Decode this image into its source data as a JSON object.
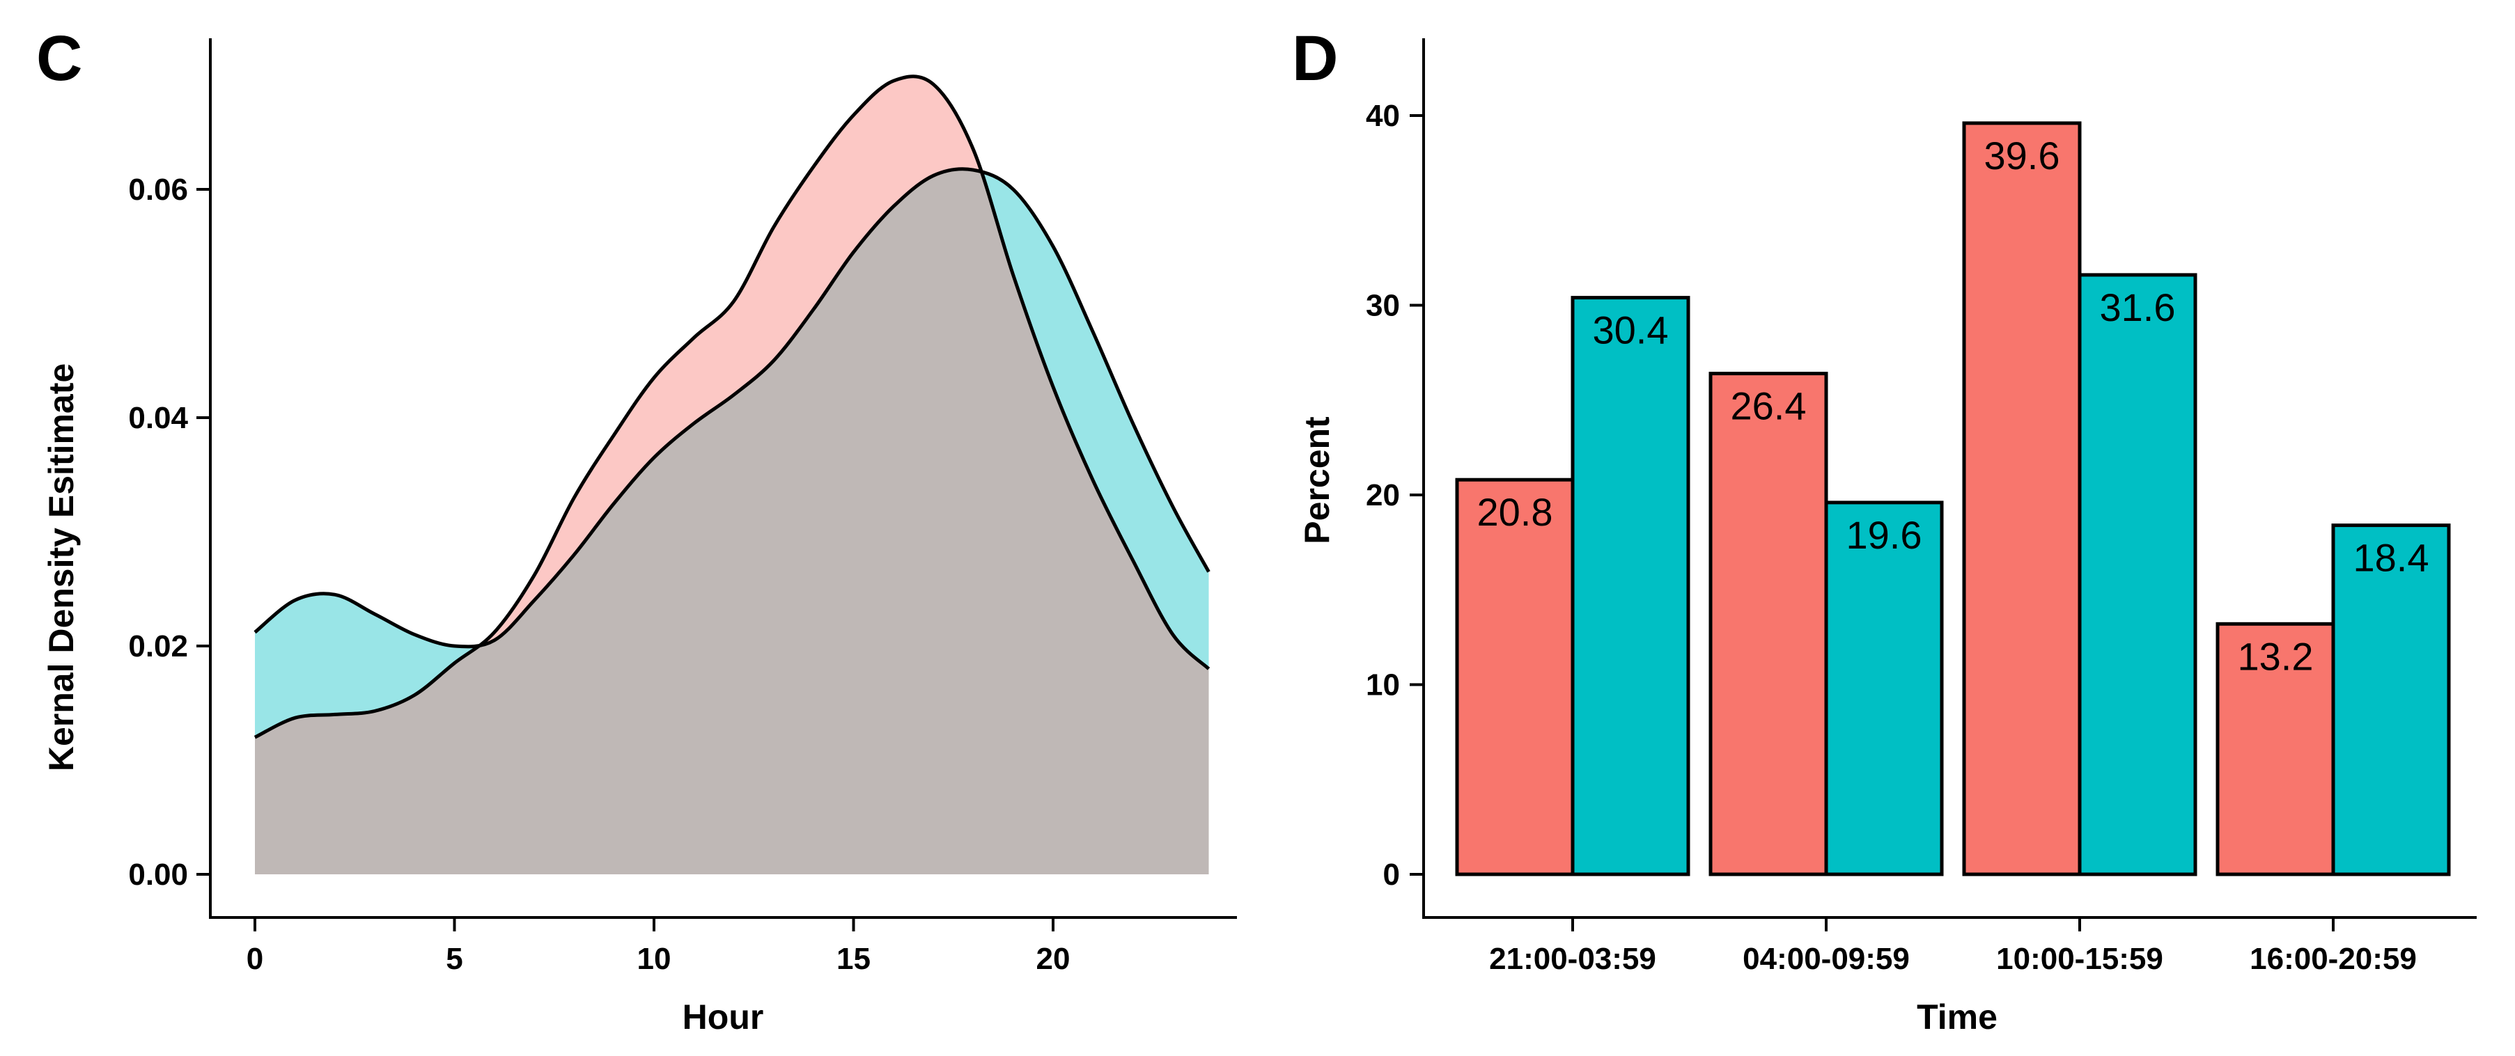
{
  "chart_data": [
    {
      "type": "area",
      "panel_label": "C",
      "xlabel": "Hour",
      "ylabel": "Kernal Density Esitimate",
      "xlim": [
        0,
        24
      ],
      "ylim": [
        0,
        0.07
      ],
      "xticks": [
        0,
        5,
        10,
        15,
        20
      ],
      "yticks": [
        0.0,
        0.02,
        0.04,
        0.06
      ],
      "ytick_labels": [
        "0.00",
        "0.02",
        "0.04",
        "0.06"
      ],
      "legend": "none",
      "grid": false,
      "series": [
        {
          "color": "#F8766D",
          "x": [
            0,
            1,
            2,
            3,
            4,
            5,
            6,
            7,
            8,
            9,
            10,
            11,
            12,
            13,
            14,
            15,
            16,
            17,
            18,
            19,
            20,
            21,
            22,
            23,
            23.9
          ],
          "y": [
            0.012,
            0.0137,
            0.014,
            0.0143,
            0.0157,
            0.0185,
            0.0212,
            0.0262,
            0.033,
            0.0385,
            0.0435,
            0.047,
            0.0502,
            0.0567,
            0.062,
            0.0665,
            0.0695,
            0.0692,
            0.0635,
            0.0525,
            0.0427,
            0.0345,
            0.0275,
            0.021,
            0.018
          ]
        },
        {
          "color": "#00BFC4",
          "x": [
            0,
            1,
            2,
            3,
            4,
            5,
            6,
            7,
            8,
            9,
            10,
            11,
            12,
            13,
            14,
            15,
            16,
            17,
            18,
            19,
            20,
            21,
            22,
            23,
            23.9
          ],
          "y": [
            0.0212,
            0.024,
            0.0245,
            0.0228,
            0.021,
            0.02,
            0.0205,
            0.024,
            0.028,
            0.0325,
            0.0365,
            0.0395,
            0.042,
            0.045,
            0.0495,
            0.0545,
            0.0585,
            0.0612,
            0.0617,
            0.06,
            0.055,
            0.0475,
            0.0395,
            0.0322,
            0.0265
          ]
        }
      ]
    },
    {
      "type": "bar",
      "panel_label": "D",
      "xlabel": "Time",
      "ylabel": "Percent",
      "ylim": [
        0,
        44
      ],
      "yticks": [
        0,
        10,
        20,
        30,
        40
      ],
      "categories": [
        "21:00-03:59",
        "04:00-09:59",
        "10:00-15:59",
        "16:00-20:59"
      ],
      "legend": "none",
      "grid": false,
      "series": [
        {
          "color": "#F8766D",
          "values": [
            20.8,
            26.4,
            39.6,
            13.2
          ],
          "labels": [
            "20.8",
            "26.4",
            "39.6",
            "13.2"
          ]
        },
        {
          "color": "#00BFC4",
          "values": [
            30.4,
            19.6,
            31.6,
            18.4
          ],
          "labels": [
            "30.4",
            "19.6",
            "31.6",
            "18.4"
          ]
        }
      ]
    }
  ]
}
